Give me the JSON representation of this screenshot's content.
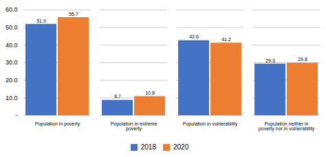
{
  "chart_data": {
    "type": "bar",
    "categories": [
      "Population in poverty",
      "Population in extreme\npoverty",
      "Population in vulnerability",
      "Population neither in\npoverty nor in vulnerability"
    ],
    "series": [
      {
        "name": "2018",
        "color": "#4472C4",
        "values": [
          51.9,
          8.7,
          42.6,
          29.3
        ]
      },
      {
        "name": "2020",
        "color": "#ED7D31",
        "values": [
          55.7,
          10.8,
          41.2,
          29.8
        ]
      }
    ],
    "ylim": [
      0,
      60.0
    ],
    "yticks": [
      {
        "value": 0,
        "label": "-"
      },
      {
        "value": 10.0,
        "label": "10.0"
      },
      {
        "value": 20.0,
        "label": "20.0"
      },
      {
        "value": 30.0,
        "label": "30.0"
      },
      {
        "value": 40.0,
        "label": "40.0"
      },
      {
        "value": 50.0,
        "label": "50.0"
      },
      {
        "value": 60.0,
        "label": "60.0"
      }
    ],
    "grid": true,
    "legend": "bottom",
    "data_labels": true
  }
}
